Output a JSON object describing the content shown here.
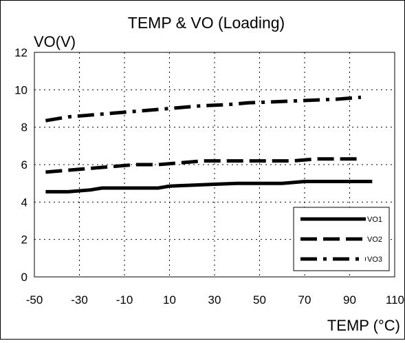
{
  "chart_data": {
    "type": "line",
    "title": "TEMP & VO (Loading)",
    "ylabel": "VO(V)",
    "xlabel": "TEMP (°C)",
    "xlim": [
      -50,
      110
    ],
    "ylim": [
      0,
      12
    ],
    "xticks": [
      -50,
      -30,
      -10,
      10,
      30,
      50,
      70,
      90,
      110
    ],
    "yticks": [
      0,
      2,
      4,
      6,
      8,
      10,
      12
    ],
    "xtick_labels": [
      "-50",
      "-30",
      "-10",
      "10",
      "30",
      "50",
      "70",
      "90",
      "110"
    ],
    "ytick_labels": [
      "0",
      "2",
      "4",
      "6",
      "8",
      "10",
      "12"
    ],
    "grid": "dotted",
    "legend_position": "bottom-right",
    "series": [
      {
        "name": "VO1",
        "style": "solid",
        "color": "#000000",
        "x": [
          -45,
          -35,
          -25,
          -20,
          5,
          10,
          20,
          30,
          40,
          60,
          70,
          80,
          90,
          100
        ],
        "y": [
          4.55,
          4.55,
          4.65,
          4.75,
          4.75,
          4.85,
          4.9,
          4.95,
          5.0,
          5.0,
          5.1,
          5.1,
          5.1,
          5.1
        ]
      },
      {
        "name": "VO2",
        "style": "dashed",
        "color": "#000000",
        "x": [
          -45,
          -35,
          -25,
          -15,
          -5,
          5,
          15,
          25,
          35,
          45,
          55,
          65,
          75,
          85,
          95
        ],
        "y": [
          5.6,
          5.7,
          5.8,
          5.9,
          6.0,
          6.0,
          6.1,
          6.2,
          6.2,
          6.2,
          6.2,
          6.2,
          6.3,
          6.3,
          6.3
        ]
      },
      {
        "name": "VO3",
        "style": "dash-dot",
        "color": "#000000",
        "x": [
          -45,
          -35,
          -25,
          -15,
          -5,
          5,
          15,
          25,
          35,
          45,
          55,
          65,
          75,
          85,
          95
        ],
        "y": [
          8.35,
          8.55,
          8.65,
          8.75,
          8.85,
          8.95,
          9.05,
          9.15,
          9.2,
          9.3,
          9.35,
          9.4,
          9.45,
          9.5,
          9.6
        ]
      }
    ]
  }
}
